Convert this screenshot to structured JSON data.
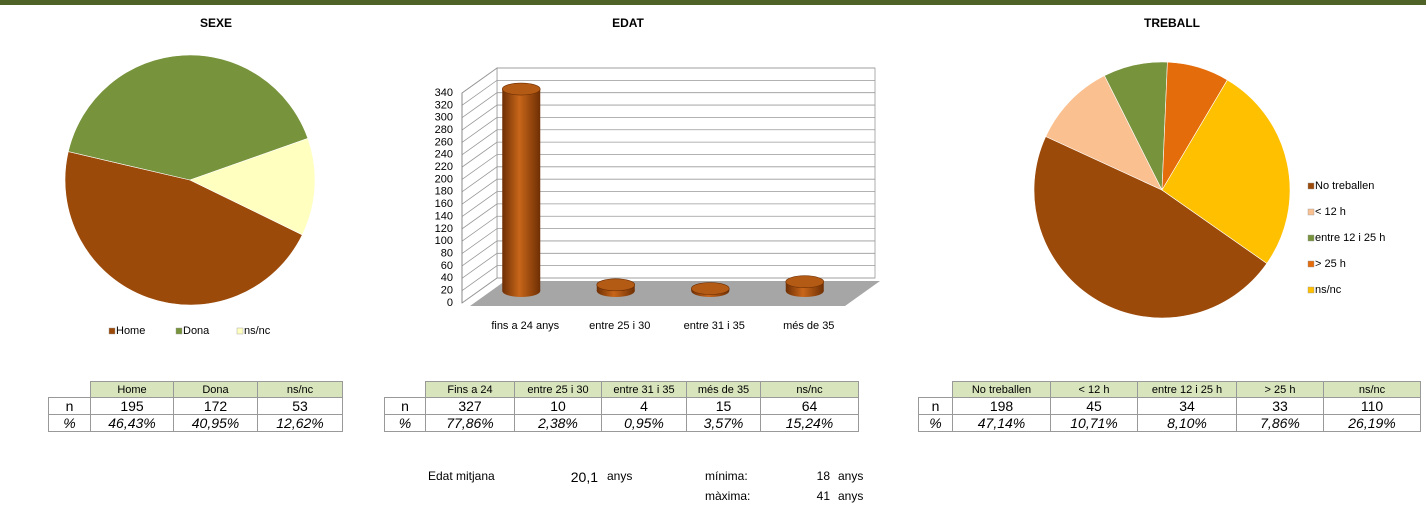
{
  "chart_data": [
    {
      "type": "pie",
      "title": "SEXE",
      "categories": [
        "Home",
        "Dona",
        "ns/nc"
      ],
      "values": [
        195,
        172,
        53
      ],
      "colors": [
        "#9c4a0a",
        "#77933c",
        "#ffffc0"
      ],
      "legend": "bottom"
    },
    {
      "type": "bar3d",
      "title": "EDAT",
      "categories": [
        "fins a 24 anys",
        "entre 25 i 30",
        "entre 31 i 35",
        "més de 35"
      ],
      "values": [
        327,
        10,
        4,
        15
      ],
      "color": "#9c4a0a",
      "ylim": [
        0,
        340
      ],
      "yticks": [
        0,
        20,
        40,
        60,
        80,
        100,
        120,
        140,
        160,
        180,
        200,
        220,
        240,
        260,
        280,
        300,
        320,
        340
      ],
      "grid": true
    },
    {
      "type": "pie",
      "title": "TREBALL",
      "categories": [
        "No treballen",
        "< 12 h",
        "entre 12 i 25 h",
        "> 25 h",
        "ns/nc"
      ],
      "values": [
        198,
        45,
        34,
        33,
        110
      ],
      "colors": [
        "#9c4a0a",
        "#fac090",
        "#77933c",
        "#e46c0a",
        "#ffc000"
      ],
      "legend": "right"
    }
  ],
  "tables": [
    {
      "header": [
        "Home",
        "Dona",
        "ns/nc"
      ],
      "rows": [
        [
          "n",
          195,
          172,
          53
        ],
        [
          "%",
          "46,43%",
          "40,95%",
          "12,62%"
        ]
      ]
    },
    {
      "header": [
        "Fins a 24",
        "entre 25 i 30",
        "entre 31 i 35",
        "més de 35",
        "ns/nc"
      ],
      "rows": [
        [
          "n",
          327,
          10,
          4,
          15,
          64
        ],
        [
          "%",
          "77,86%",
          "2,38%",
          "0,95%",
          "3,57%",
          "15,24%"
        ]
      ]
    },
    {
      "header": [
        "No treballen",
        "< 12 h",
        "entre 12 i 25 h",
        "> 25 h",
        "ns/nc"
      ],
      "rows": [
        [
          "n",
          198,
          45,
          34,
          33,
          110
        ],
        [
          "%",
          "47,14%",
          "10,71%",
          "8,10%",
          "7,86%",
          "26,19%"
        ]
      ]
    }
  ],
  "stats": [
    [
      "Edat mitjana",
      "20,1",
      "anys"
    ],
    [
      "mínima:",
      18,
      "anys"
    ],
    [
      "màxima:",
      41,
      "anys"
    ]
  ]
}
